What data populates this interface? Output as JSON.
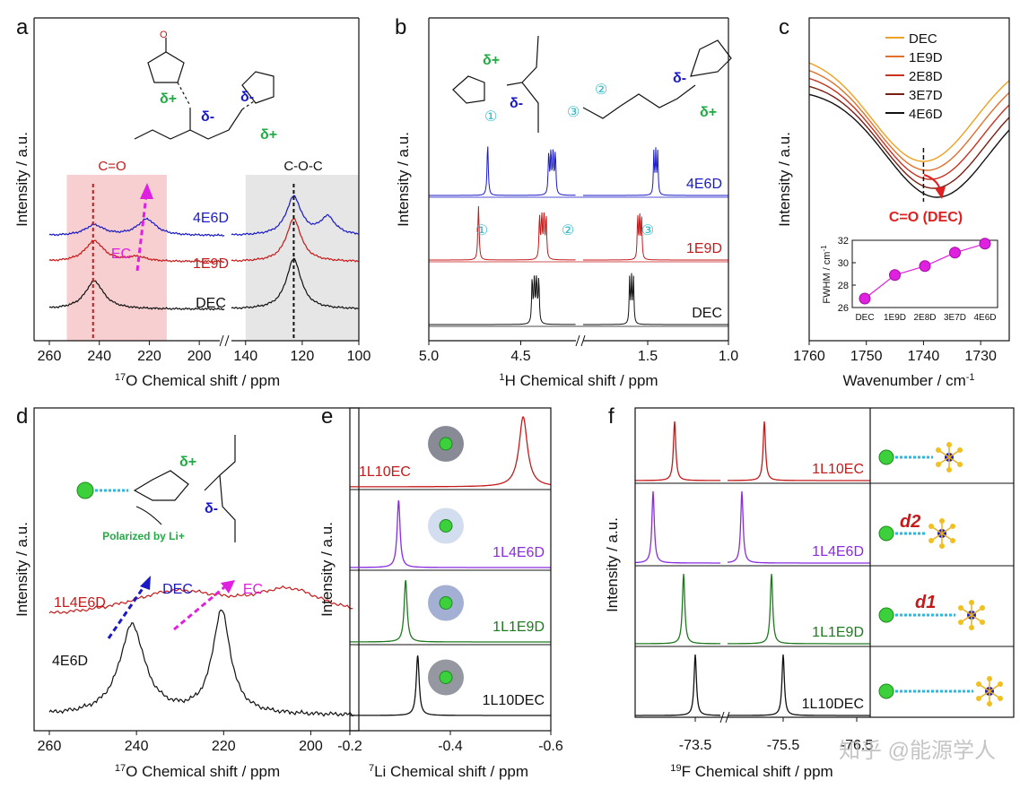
{
  "figure": {
    "watermark": "知乎 @能源学人"
  },
  "chart_data": [
    {
      "panel": "a",
      "type": "line",
      "title": "",
      "xlabel": "17O Chemical shift / ppm",
      "xlabel_sup": "17",
      "xlabel_rest": "O Chemical shift / ppm",
      "ylabel": "Intensity / a.u.",
      "broken_axis": true,
      "xlim_left": [
        260,
        190
      ],
      "xlim_right": [
        145,
        100
      ],
      "xticks": [
        "260",
        "240",
        "220",
        "200",
        "140",
        "120",
        "100"
      ],
      "highlight_regions": [
        {
          "label": "C=O",
          "range": [
            253,
            213
          ],
          "color": "#f8cfd0"
        },
        {
          "label": "C-O-C",
          "range": [
            140,
            100
          ],
          "color": "#e6e6e6"
        }
      ],
      "reference_lines": [
        242.5,
        123
      ],
      "series": [
        {
          "name": "4E6D",
          "color": "#1a1ac4",
          "peaks": [
            {
              "x": 242,
              "h": 0.35
            },
            {
              "x": 221,
              "h": 0.55
            },
            {
              "x": 123,
              "h": 1.3
            },
            {
              "x": 111,
              "h": 0.6
            }
          ]
        },
        {
          "name": "1E9D",
          "color": "#c41a1a",
          "peaks": [
            {
              "x": 242,
              "h": 0.7
            },
            {
              "x": 225,
              "h": 0.15
            },
            {
              "x": 123,
              "h": 1.45
            }
          ]
        },
        {
          "name": "DEC",
          "color": "#111111",
          "peaks": [
            {
              "x": 242,
              "h": 0.95
            },
            {
              "x": 123,
              "h": 1.7
            }
          ]
        }
      ],
      "annotations": [
        "EC",
        "δ+",
        "δ-"
      ]
    },
    {
      "panel": "b",
      "type": "line",
      "title": "",
      "xlabel": "1H Chemical shift / ppm",
      "xlabel_sup": "1",
      "xlabel_rest": "H Chemical shift / ppm",
      "ylabel": "Intensity / a.u.",
      "broken_axis": true,
      "xticks": [
        "5.0",
        "4.5",
        "1.5",
        "1.0"
      ],
      "series": [
        {
          "name": "4E6D",
          "color": "#1a1ac4",
          "peaks": [
            4.68,
            4.33,
            1.45
          ]
        },
        {
          "name": "1E9D",
          "color": "#c41a1a",
          "peaks": [
            4.73,
            4.38,
            1.55
          ]
        },
        {
          "name": "DEC",
          "color": "#111111",
          "peaks": [
            4.42,
            1.6
          ]
        }
      ],
      "annotations": [
        "①",
        "②",
        "③",
        "δ+",
        "δ-"
      ]
    },
    {
      "panel": "c",
      "type": "line",
      "title": "",
      "xlabel": "Wavenumber / cm-1",
      "xlabel_main": "Wavenumber / cm",
      "xlabel_sup": "-1",
      "ylabel": "Intensity / a.u.",
      "xlim": [
        1760,
        1725
      ],
      "xticks": [
        1760,
        1750,
        1740,
        1730
      ],
      "series": [
        {
          "name": "DEC",
          "color": "#f0a020"
        },
        {
          "name": "1E9D",
          "color": "#e0702a"
        },
        {
          "name": "2E8D",
          "color": "#c8321e"
        },
        {
          "name": "3E7D",
          "color": "#7a1e14"
        },
        {
          "name": "4E6D",
          "color": "#111111"
        }
      ],
      "annotation": "C=O (DEC)",
      "inset": {
        "type": "line",
        "ylabel": "FWHM / cm-1",
        "ylabel_main": "FWHM / cm",
        "ylabel_sup": "-1",
        "categories": [
          "DEC",
          "1E9D",
          "2E8D",
          "3E7D",
          "4E6D"
        ],
        "values": [
          26.8,
          28.9,
          29.7,
          30.9,
          31.7
        ],
        "ylim": [
          26,
          32
        ],
        "yticks": [
          26,
          28,
          30,
          32
        ],
        "color": "#e020e0"
      }
    },
    {
      "panel": "d",
      "type": "line",
      "title": "",
      "xlabel": "17O Chemical shift / ppm",
      "xlabel_sup": "17",
      "xlabel_rest": "O Chemical shift / ppm",
      "ylabel": "Intensity / a.u.",
      "xlim": [
        260,
        190
      ],
      "xticks": [
        260,
        240,
        220,
        200
      ],
      "series": [
        {
          "name": "1L4E6D",
          "color": "#c41a1a"
        },
        {
          "name": "4E6D",
          "color": "#111111"
        }
      ],
      "annotations": [
        "DEC",
        "EC",
        "δ+",
        "δ-"
      ],
      "caption": "Polarized by Li+"
    },
    {
      "panel": "e",
      "type": "line",
      "title": "",
      "xlabel": "7Li Chemical shift / ppm",
      "xlabel_sup": "7",
      "xlabel_rest": "Li Chemical shift / ppm",
      "ylabel": "Intensity / a.u.",
      "xlim": [
        -0.2,
        -0.6
      ],
      "xticks": [
        "-0.2",
        "-0.4",
        "-0.6"
      ],
      "series": [
        {
          "name": "1L10EC",
          "color": "#c41a1a",
          "peak": -0.545
        },
        {
          "name": "1L4E6D",
          "color": "#8a2be2",
          "peak": -0.297
        },
        {
          "name": "1L1E9D",
          "color": "#1e7a1e",
          "peak": -0.311
        },
        {
          "name": "1L10DEC",
          "color": "#111111",
          "peak": -0.335
        }
      ]
    },
    {
      "panel": "f",
      "type": "line",
      "title": "",
      "xlabel": "19F Chemical shift / ppm",
      "xlabel_sup": "19",
      "xlabel_rest": "F Chemical shift / ppm",
      "ylabel": "Intensity / a.u.",
      "broken_axis": true,
      "xticks": [
        "-73.5",
        "-75.5",
        "-76.5"
      ],
      "series": [
        {
          "name": "1L10EC",
          "color": "#c41a1a"
        },
        {
          "name": "1L4E6D",
          "color": "#8a2be2"
        },
        {
          "name": "1L1E9D",
          "color": "#1e7a1e"
        },
        {
          "name": "1L10DEC",
          "color": "#111111"
        }
      ],
      "annotations": [
        "d2",
        "d1"
      ]
    }
  ],
  "panel_labels": [
    "a",
    "b",
    "c",
    "d",
    "e",
    "f"
  ]
}
